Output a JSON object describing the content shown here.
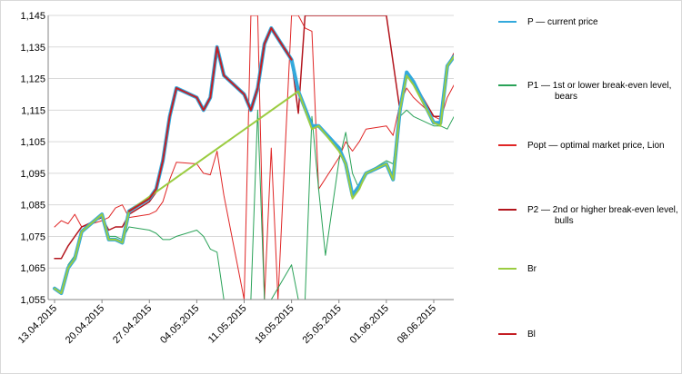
{
  "chart_data": {
    "type": "line",
    "title": "",
    "xlabel": "",
    "ylabel": "",
    "ylim": [
      1.055,
      1.145
    ],
    "y_ticks": [
      "1,055",
      "1,065",
      "1,075",
      "1,085",
      "1,095",
      "1,105",
      "1,115",
      "1,125",
      "1,135",
      "1,145"
    ],
    "x_ticks": [
      "13.04.2015",
      "20.04.2015",
      "27.04.2015",
      "04.05.2015",
      "11.05.2015",
      "18.05.2015",
      "25.05.2015",
      "01.06.2015",
      "08.06.2015"
    ],
    "x_start": "2015-04-13",
    "grid": "horizontal",
    "legend_position": "right",
    "series": [
      {
        "name": "P — current price",
        "color": "#33a9dc",
        "width": 4,
        "points": [
          [
            "2015-04-13",
            1.0585
          ],
          [
            "2015-04-14",
            1.057
          ],
          [
            "2015-04-15",
            1.065
          ],
          [
            "2015-04-16",
            1.068
          ],
          [
            "2015-04-17",
            1.0765
          ],
          [
            "2015-04-20",
            1.082
          ],
          [
            "2015-04-21",
            1.074
          ],
          [
            "2015-04-22",
            1.074
          ],
          [
            "2015-04-23",
            1.073
          ],
          [
            "2015-04-24",
            1.083
          ],
          [
            "2015-04-27",
            1.087
          ],
          [
            "2015-04-28",
            1.09
          ],
          [
            "2015-04-29",
            1.099
          ],
          [
            "2015-04-30",
            1.113
          ],
          [
            "2015-05-01",
            1.122
          ],
          [
            "2015-05-04",
            1.119
          ],
          [
            "2015-05-05",
            1.115
          ],
          [
            "2015-05-06",
            1.119
          ],
          [
            "2015-05-07",
            1.135
          ],
          [
            "2015-05-08",
            1.126
          ],
          [
            "2015-05-11",
            1.12
          ],
          [
            "2015-05-12",
            1.115
          ],
          [
            "2015-05-13",
            1.122
          ],
          [
            "2015-05-14",
            1.136
          ],
          [
            "2015-05-15",
            1.141
          ],
          [
            "2015-05-18",
            1.131
          ],
          [
            "2015-05-19",
            1.121
          ],
          [
            "2015-05-21",
            1.11
          ],
          [
            "2015-05-22",
            1.11
          ],
          [
            "2015-05-25",
            1.103
          ],
          [
            "2015-05-26",
            1.098
          ],
          [
            "2015-05-27",
            1.088
          ],
          [
            "2015-05-28",
            1.091
          ],
          [
            "2015-05-29",
            1.095
          ],
          [
            "2015-06-01",
            1.098
          ],
          [
            "2015-06-02",
            1.093
          ],
          [
            "2015-06-03",
            1.115
          ],
          [
            "2015-06-04",
            1.127
          ],
          [
            "2015-06-05",
            1.124
          ],
          [
            "2015-06-08",
            1.111
          ],
          [
            "2015-06-09",
            1.111
          ],
          [
            "2015-06-10",
            1.129
          ],
          [
            "2015-06-11",
            1.132
          ]
        ]
      },
      {
        "name": "P1 — 1st or lower break-even level, bears",
        "color": "#2aa258",
        "width": 1,
        "points": [
          [
            "2015-04-13",
            1.059
          ],
          [
            "2015-04-14",
            1.0575
          ],
          [
            "2015-04-15",
            1.066
          ],
          [
            "2015-04-16",
            1.069
          ],
          [
            "2015-04-17",
            1.076
          ],
          [
            "2015-04-20",
            1.082
          ],
          [
            "2015-04-21",
            1.075
          ],
          [
            "2015-04-22",
            1.075
          ],
          [
            "2015-04-23",
            1.074
          ],
          [
            "2015-04-24",
            1.078
          ],
          [
            "2015-04-27",
            1.077
          ],
          [
            "2015-04-28",
            1.076
          ],
          [
            "2015-04-29",
            1.074
          ],
          [
            "2015-04-30",
            1.074
          ],
          [
            "2015-05-01",
            1.075
          ],
          [
            "2015-05-04",
            1.077
          ],
          [
            "2015-05-05",
            1.075
          ],
          [
            "2015-05-06",
            1.071
          ],
          [
            "2015-05-07",
            1.07
          ],
          [
            "2015-05-08",
            1.055
          ],
          [
            "2015-05-12",
            1.055
          ],
          [
            "2015-05-13",
            1.115
          ],
          [
            "2015-05-14",
            1.055
          ],
          [
            "2015-05-15",
            1.055
          ],
          [
            "2015-05-18",
            1.066
          ],
          [
            "2015-05-19",
            1.055
          ],
          [
            "2015-05-20",
            1.055
          ],
          [
            "2015-05-21",
            1.113
          ],
          [
            "2015-05-22",
            1.09
          ],
          [
            "2015-05-23",
            1.069
          ],
          [
            "2015-05-25",
            1.099
          ],
          [
            "2015-05-26",
            1.108
          ],
          [
            "2015-05-27",
            1.095
          ],
          [
            "2015-05-28",
            1.09
          ],
          [
            "2015-05-29",
            1.095
          ],
          [
            "2015-06-01",
            1.099
          ],
          [
            "2015-06-02",
            1.098
          ],
          [
            "2015-06-03",
            1.113
          ],
          [
            "2015-06-04",
            1.115
          ],
          [
            "2015-06-05",
            1.113
          ],
          [
            "2015-06-08",
            1.11
          ],
          [
            "2015-06-09",
            1.11
          ],
          [
            "2015-06-10",
            1.109
          ],
          [
            "2015-06-11",
            1.113
          ]
        ]
      },
      {
        "name": "Popt — optimal market price, Lion",
        "color": "#e02626",
        "width": 1,
        "points": [
          [
            "2015-04-13",
            1.078
          ],
          [
            "2015-04-14",
            1.08
          ],
          [
            "2015-04-15",
            1.079
          ],
          [
            "2015-04-16",
            1.082
          ],
          [
            "2015-04-17",
            1.078
          ],
          [
            "2015-04-20",
            1.08
          ],
          [
            "2015-04-21",
            1.081
          ],
          [
            "2015-04-22",
            1.084
          ],
          [
            "2015-04-23",
            1.085
          ],
          [
            "2015-04-24",
            1.081
          ],
          [
            "2015-04-27",
            1.082
          ],
          [
            "2015-04-28",
            1.083
          ],
          [
            "2015-04-29",
            1.086
          ],
          [
            "2015-04-30",
            1.093
          ],
          [
            "2015-05-01",
            1.0985
          ],
          [
            "2015-05-04",
            1.098
          ],
          [
            "2015-05-05",
            1.095
          ],
          [
            "2015-05-06",
            1.0945
          ],
          [
            "2015-05-07",
            1.102
          ],
          [
            "2015-05-08",
            1.088
          ],
          [
            "2015-05-11",
            1.055
          ],
          [
            "2015-05-12",
            1.145
          ],
          [
            "2015-05-13",
            1.145
          ],
          [
            "2015-05-14",
            1.055
          ],
          [
            "2015-05-15",
            1.103
          ],
          [
            "2015-05-16",
            1.055
          ],
          [
            "2015-05-18",
            1.145
          ],
          [
            "2015-05-19",
            1.145
          ],
          [
            "2015-05-20",
            1.141
          ],
          [
            "2015-05-21",
            1.14
          ],
          [
            "2015-05-22",
            1.09
          ],
          [
            "2015-05-25",
            1.1
          ],
          [
            "2015-05-26",
            1.105
          ],
          [
            "2015-05-27",
            1.102
          ],
          [
            "2015-05-28",
            1.105
          ],
          [
            "2015-05-29",
            1.109
          ],
          [
            "2015-06-01",
            1.11
          ],
          [
            "2015-06-02",
            1.107
          ],
          [
            "2015-06-03",
            1.117
          ],
          [
            "2015-06-04",
            1.122
          ],
          [
            "2015-06-05",
            1.119
          ],
          [
            "2015-06-08",
            1.113
          ],
          [
            "2015-06-09",
            1.112
          ],
          [
            "2015-06-10",
            1.119
          ],
          [
            "2015-06-11",
            1.123
          ]
        ]
      },
      {
        "name": "P2 — 2nd or higher break-even level, bulls",
        "color": "#b3151d",
        "width": 1.5,
        "points": [
          [
            "2015-04-13",
            1.068
          ],
          [
            "2015-04-14",
            1.068
          ],
          [
            "2015-04-15",
            1.072
          ],
          [
            "2015-04-16",
            1.075
          ],
          [
            "2015-04-17",
            1.078
          ],
          [
            "2015-04-20",
            1.081
          ],
          [
            "2015-04-21",
            1.077
          ],
          [
            "2015-04-22",
            1.078
          ],
          [
            "2015-04-23",
            1.078
          ],
          [
            "2015-04-24",
            1.082
          ],
          [
            "2015-04-27",
            1.086
          ],
          [
            "2015-04-28",
            1.089
          ],
          [
            "2015-04-29",
            1.1
          ],
          [
            "2015-04-30",
            1.112
          ],
          [
            "2015-05-01",
            1.122
          ],
          [
            "2015-05-04",
            1.119
          ],
          [
            "2015-05-05",
            1.115
          ],
          [
            "2015-05-06",
            1.119
          ],
          [
            "2015-05-07",
            1.135
          ],
          [
            "2015-05-08",
            1.126
          ],
          [
            "2015-05-11",
            1.12
          ],
          [
            "2015-05-12",
            1.115
          ],
          [
            "2015-05-13",
            1.122
          ],
          [
            "2015-05-14",
            1.136
          ],
          [
            "2015-05-15",
            1.141
          ],
          [
            "2015-05-18",
            1.131
          ],
          [
            "2015-05-19",
            1.114
          ],
          [
            "2015-05-20",
            1.145
          ],
          [
            "2015-06-01",
            1.145
          ],
          [
            "2015-06-03",
            1.115
          ],
          [
            "2015-06-04",
            1.127
          ],
          [
            "2015-06-05",
            1.124
          ],
          [
            "2015-06-08",
            1.113
          ],
          [
            "2015-06-09",
            1.113
          ],
          [
            "2015-06-10",
            1.129
          ],
          [
            "2015-06-11",
            1.133
          ]
        ]
      },
      {
        "name": "Br",
        "color": "#9bcc41",
        "width": 2,
        "points": [
          [
            "2015-04-13",
            1.0585
          ],
          [
            "2015-04-14",
            1.057
          ],
          [
            "2015-04-15",
            1.065
          ],
          [
            "2015-04-16",
            1.068
          ],
          [
            "2015-04-17",
            1.0765
          ],
          [
            "2015-04-20",
            1.082
          ],
          [
            "2015-04-21",
            1.074
          ],
          [
            "2015-04-22",
            1.074
          ],
          [
            "2015-04-23",
            1.073
          ],
          [
            "2015-04-24",
            1.083
          ],
          [
            "2015-05-19",
            1.121
          ],
          [
            "2015-05-21",
            1.109
          ],
          [
            "2015-05-22",
            1.11
          ],
          [
            "2015-05-25",
            1.102
          ],
          [
            "2015-05-26",
            1.098
          ],
          [
            "2015-05-27",
            1.087
          ],
          [
            "2015-05-28",
            1.09
          ],
          [
            "2015-05-29",
            1.095
          ],
          [
            "2015-06-01",
            1.098
          ],
          [
            "2015-06-02",
            1.093
          ],
          [
            "2015-06-03",
            1.115
          ],
          [
            "2015-06-04",
            1.126
          ],
          [
            "2015-06-05",
            1.123
          ],
          [
            "2015-06-08",
            1.111
          ],
          [
            "2015-06-09",
            1.11
          ],
          [
            "2015-06-10",
            1.129
          ],
          [
            "2015-06-11",
            1.132
          ]
        ]
      },
      {
        "name": "Bl",
        "color": "#c41e24",
        "width": 2,
        "points": [
          [
            "2015-04-24",
            1.083
          ],
          [
            "2015-04-27",
            1.087
          ],
          [
            "2015-04-28",
            1.09
          ],
          [
            "2015-04-29",
            1.099
          ],
          [
            "2015-04-30",
            1.113
          ],
          [
            "2015-05-01",
            1.122
          ],
          [
            "2015-05-04",
            1.119
          ],
          [
            "2015-05-05",
            1.115
          ],
          [
            "2015-05-06",
            1.119
          ],
          [
            "2015-05-07",
            1.135
          ],
          [
            "2015-05-08",
            1.126
          ],
          [
            "2015-05-11",
            1.12
          ],
          [
            "2015-05-12",
            1.115
          ],
          [
            "2015-05-13",
            1.122
          ],
          [
            "2015-05-14",
            1.136
          ],
          [
            "2015-05-15",
            1.141
          ],
          [
            "2015-05-18",
            1.131
          ]
        ]
      }
    ]
  }
}
